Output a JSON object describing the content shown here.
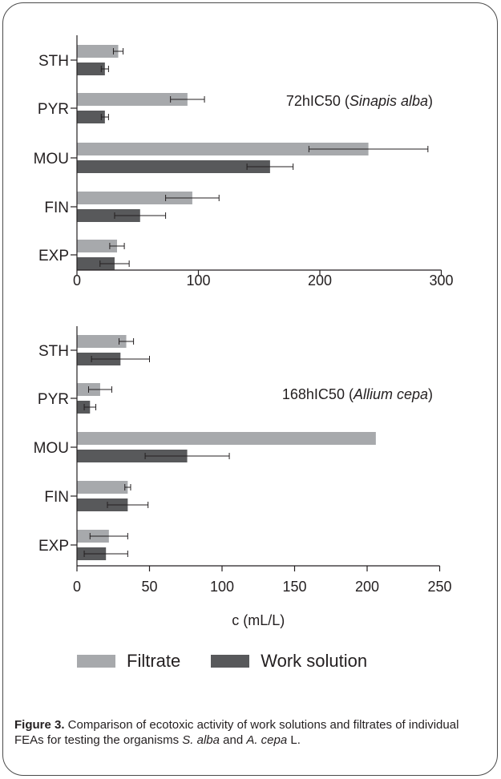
{
  "chart_data": [
    {
      "type": "bar",
      "orientation": "horizontal",
      "annotation": {
        "text": "72hIC50 (",
        "species": "Sinapis alba",
        "close": ")"
      },
      "categories": [
        "STH",
        "PYR",
        "MOU",
        "FIN",
        "EXP"
      ],
      "xlim": [
        0,
        300
      ],
      "xticks": [
        "0",
        "100",
        "200",
        "300"
      ],
      "xtick_values": [
        0,
        100,
        200,
        300
      ],
      "xlabel": "",
      "series": [
        {
          "name": "Filtrate",
          "color": "#a7a9ac",
          "values": [
            34,
            91,
            240,
            95,
            33
          ],
          "errors": [
            4,
            14,
            49,
            22,
            6
          ]
        },
        {
          "name": "Work solution",
          "color": "#58595b",
          "values": [
            23,
            23,
            159,
            52,
            31
          ],
          "errors": [
            3,
            3,
            19,
            21,
            12
          ]
        }
      ]
    },
    {
      "type": "bar",
      "orientation": "horizontal",
      "annotation": {
        "text": "168hIC50 (",
        "species": "Allium cepa",
        "close": ")"
      },
      "categories": [
        "STH",
        "PYR",
        "MOU",
        "FIN",
        "EXP"
      ],
      "xlim": [
        0,
        250
      ],
      "xticks": [
        "0",
        "50",
        "100",
        "150",
        "200",
        "250"
      ],
      "xtick_values": [
        0,
        50,
        100,
        150,
        200,
        250
      ],
      "xlabel": "c (mL/L)",
      "series": [
        {
          "name": "Filtrate",
          "color": "#a7a9ac",
          "values": [
            34,
            16,
            206,
            35,
            22
          ],
          "errors": [
            5,
            8,
            0,
            2,
            13
          ]
        },
        {
          "name": "Work solution",
          "color": "#58595b",
          "values": [
            30,
            9,
            76,
            35,
            20
          ],
          "errors": [
            20,
            4,
            29,
            14,
            15
          ]
        }
      ]
    }
  ],
  "legend": {
    "items": [
      {
        "label": "Filtrate",
        "color": "#a7a9ac"
      },
      {
        "label": "Work solution",
        "color": "#58595b"
      }
    ]
  },
  "caption": {
    "label": "Figure 3.",
    "text_1": " Comparison of ecotoxic activity of work solutions and filtrates of individual FEAs for testing the organisms ",
    "species_1": "S. alba",
    "text_2": " and ",
    "species_2": "A. cepa",
    "text_3": " L."
  }
}
